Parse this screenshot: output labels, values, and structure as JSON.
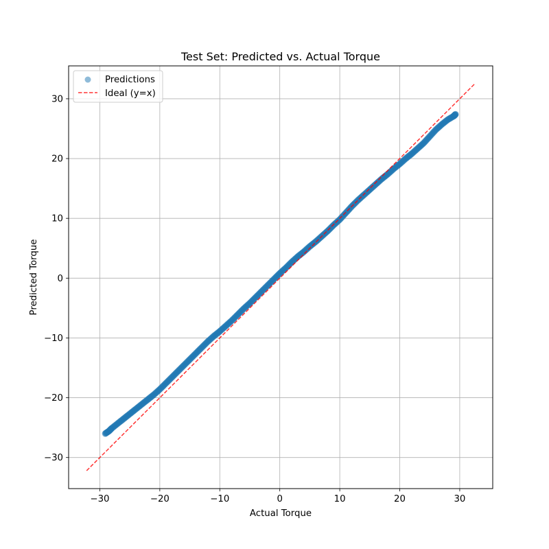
{
  "chart_data": {
    "type": "scatter",
    "title": "Test Set: Predicted vs. Actual Torque",
    "xlabel": "Actual Torque",
    "ylabel": "Predicted Torque",
    "xlim": [
      -35.2,
      35.5
    ],
    "ylim": [
      -35.2,
      35.5
    ],
    "xticks": [
      -30,
      -20,
      -10,
      0,
      10,
      20,
      30
    ],
    "yticks": [
      -30,
      -20,
      -10,
      0,
      10,
      20,
      30
    ],
    "grid": true,
    "legend_position": "top-left",
    "series": [
      {
        "name": "Predictions",
        "kind": "scatter",
        "color": "#1f77b4",
        "points_x": [
          -29.1,
          -28.5,
          -28,
          -27,
          -26,
          -25,
          -24,
          -23,
          -22,
          -21,
          -20,
          -19,
          -18,
          -17,
          -16,
          -15,
          -14,
          -13,
          -12,
          -11,
          -10,
          -9,
          -8,
          -7,
          -6,
          -5,
          -4,
          -3,
          -2,
          -1,
          0,
          1,
          2,
          3,
          4,
          5,
          6,
          7,
          8,
          9,
          10,
          11,
          12,
          13,
          14,
          15,
          16,
          17,
          18,
          19,
          20,
          21,
          22,
          23,
          24,
          25,
          26,
          27,
          28,
          29,
          29.3
        ],
        "points_y": [
          -26,
          -25.6,
          -25.1,
          -24.3,
          -23.5,
          -22.7,
          -21.9,
          -21.1,
          -20.3,
          -19.5,
          -18.6,
          -17.6,
          -16.6,
          -15.6,
          -14.6,
          -13.6,
          -12.6,
          -11.6,
          -10.6,
          -9.7,
          -8.9,
          -8,
          -7.1,
          -6.1,
          -5.1,
          -4.2,
          -3.2,
          -2.2,
          -1.2,
          -0.2,
          0.8,
          1.7,
          2.7,
          3.6,
          4.4,
          5.3,
          6.1,
          7,
          7.9,
          8.9,
          9.8,
          10.9,
          12,
          13,
          13.9,
          14.8,
          15.7,
          16.6,
          17.4,
          18.3,
          19.1,
          20,
          20.8,
          21.7,
          22.6,
          23.7,
          24.8,
          25.7,
          26.5,
          27.1,
          27.4
        ]
      },
      {
        "name": "Ideal (y=x)",
        "kind": "line",
        "color": "#ff0000",
        "x": [
          -32.2,
          32.5
        ],
        "y": [
          -32.2,
          32.5
        ]
      }
    ]
  }
}
